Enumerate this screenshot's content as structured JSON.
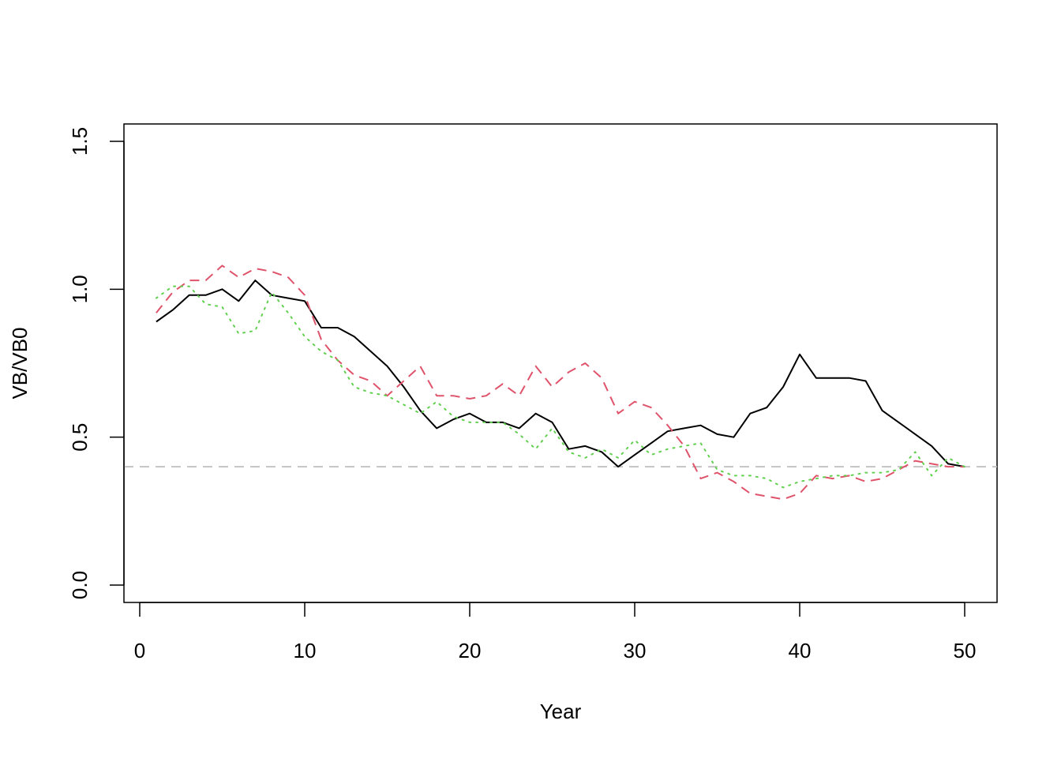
{
  "chart_data": {
    "type": "line",
    "title": "",
    "xlabel": "Year",
    "ylabel": "VB/VB0",
    "xlim": [
      0,
      50
    ],
    "ylim": [
      0,
      1.5
    ],
    "xticks": [
      "0",
      "10",
      "20",
      "30",
      "40",
      "50"
    ],
    "yticks": [
      "0.0",
      "0.5",
      "1.0",
      "1.5"
    ],
    "grid": false,
    "legend": "none",
    "reference_line": {
      "y": 0.4,
      "color": "#BEBEBE",
      "style": "dashed"
    },
    "x": [
      1,
      2,
      3,
      4,
      5,
      6,
      7,
      8,
      9,
      10,
      11,
      12,
      13,
      14,
      15,
      16,
      17,
      18,
      19,
      20,
      21,
      22,
      23,
      24,
      25,
      26,
      27,
      28,
      29,
      30,
      31,
      32,
      33,
      34,
      35,
      36,
      37,
      38,
      39,
      40,
      41,
      42,
      43,
      44,
      45,
      46,
      47,
      48,
      49,
      50
    ],
    "series": [
      {
        "color": "#000000",
        "style": "solid",
        "values": [
          0.89,
          0.93,
          0.98,
          0.98,
          1.0,
          0.96,
          1.03,
          0.98,
          0.97,
          0.96,
          0.87,
          0.87,
          0.84,
          0.79,
          0.74,
          0.67,
          0.59,
          0.53,
          0.56,
          0.58,
          0.55,
          0.55,
          0.53,
          0.58,
          0.55,
          0.46,
          0.47,
          0.45,
          0.4,
          0.44,
          0.48,
          0.52,
          0.53,
          0.54,
          0.51,
          0.5,
          0.58,
          0.6,
          0.67,
          0.78,
          0.7,
          0.7,
          0.7,
          0.69,
          0.59,
          0.55,
          0.51,
          0.47,
          0.41,
          0.4
        ]
      },
      {
        "color": "#DF536B",
        "style": "dashed",
        "values": [
          0.92,
          0.99,
          1.03,
          1.03,
          1.08,
          1.04,
          1.07,
          1.06,
          1.04,
          0.98,
          0.83,
          0.76,
          0.71,
          0.69,
          0.64,
          0.69,
          0.74,
          0.64,
          0.64,
          0.63,
          0.64,
          0.68,
          0.64,
          0.74,
          0.67,
          0.72,
          0.75,
          0.7,
          0.58,
          0.62,
          0.6,
          0.54,
          0.47,
          0.36,
          0.38,
          0.35,
          0.31,
          0.3,
          0.29,
          0.31,
          0.37,
          0.36,
          0.37,
          0.35,
          0.36,
          0.39,
          0.42,
          0.41,
          0.4,
          0.4
        ]
      },
      {
        "color": "#61D04F",
        "style": "dotted",
        "values": [
          0.97,
          1.01,
          1.01,
          0.95,
          0.94,
          0.85,
          0.86,
          0.99,
          0.92,
          0.84,
          0.79,
          0.76,
          0.67,
          0.65,
          0.64,
          0.61,
          0.58,
          0.62,
          0.57,
          0.55,
          0.55,
          0.55,
          0.51,
          0.46,
          0.53,
          0.45,
          0.43,
          0.46,
          0.43,
          0.49,
          0.44,
          0.46,
          0.47,
          0.48,
          0.39,
          0.37,
          0.37,
          0.36,
          0.33,
          0.35,
          0.36,
          0.37,
          0.37,
          0.38,
          0.38,
          0.39,
          0.45,
          0.37,
          0.43,
          0.4
        ]
      }
    ]
  }
}
